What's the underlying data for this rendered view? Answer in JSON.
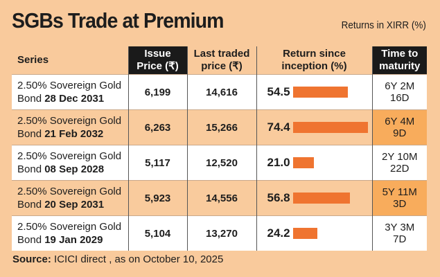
{
  "chart_data": {
    "type": "table",
    "title": "SGBs Trade at Premium",
    "subtitle": "Returns in XIRR (%)",
    "columns": [
      "Series",
      "Issue Price (₹)",
      "Last traded price (₹)",
      "Return since inception (%)",
      "Time to maturity"
    ],
    "rows": [
      {
        "series_prefix": "2.50% Sovereign Gold Bond",
        "series_date": "28 Dec 2031",
        "issue_price": "6,199",
        "last_traded": "14,616",
        "return": 54.5,
        "return_label": "54.5",
        "ttm_1": "6Y 2M",
        "ttm_2": "16D"
      },
      {
        "series_prefix": "2.50% Sovereign Gold Bond",
        "series_date": "21 Feb 2032",
        "issue_price": "6,263",
        "last_traded": "15,266",
        "return": 74.4,
        "return_label": "74.4",
        "ttm_1": "6Y 4M",
        "ttm_2": "9D"
      },
      {
        "series_prefix": "2.50% Sovereign Gold Bond",
        "series_date": "08 Sep 2028",
        "issue_price": "5,117",
        "last_traded": "12,520",
        "return": 21.0,
        "return_label": "21.0",
        "ttm_1": "2Y 10M",
        "ttm_2": "22D"
      },
      {
        "series_prefix": "2.50% Sovereign Gold Bond",
        "series_date": "20 Sep 2031",
        "issue_price": "5,923",
        "last_traded": "14,556",
        "return": 56.8,
        "return_label": "56.8",
        "ttm_1": "5Y 11M",
        "ttm_2": "3D"
      },
      {
        "series_prefix": "2.50% Sovereign Gold Bond",
        "series_date": "19 Jan 2029",
        "issue_price": "5,104",
        "last_traded": "13,270",
        "return": 24.2,
        "return_label": "24.2",
        "ttm_1": "3Y 3M",
        "ttm_2": "7D"
      }
    ],
    "source_label": "Source:",
    "source_text": " ICICI direct , as on October 10, 2025",
    "colors": {
      "bar": "#ef7430",
      "background": "#f9ca9c",
      "header_dark": "#1a1a1a",
      "highlight": "#f8ac5c"
    }
  },
  "header": {
    "series": "Series",
    "issue_1": "Issue",
    "issue_2": "Price (₹)",
    "last_1": "Last traded",
    "last_2": "price (₹)",
    "ret_1": "Return since",
    "ret_2": "inception (%)",
    "ttm_1": "Time to",
    "ttm_2": "maturity"
  }
}
